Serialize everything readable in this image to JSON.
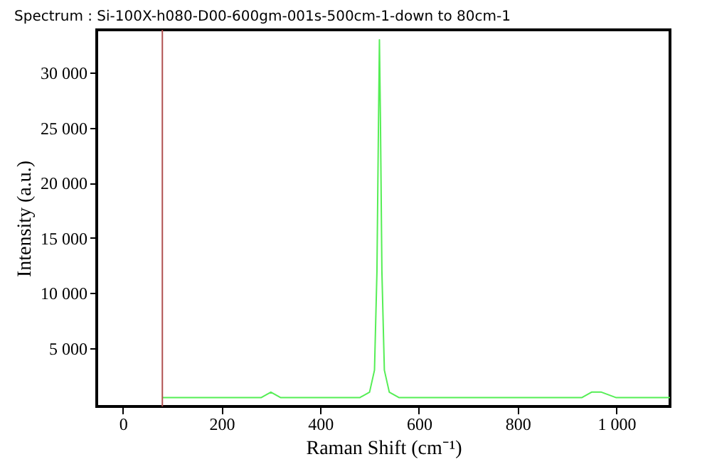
{
  "chart_data": {
    "type": "line",
    "title": "Spectrum : Si-100X-h080-D00-600gm-001s-500cm-1-down to 80cm-1",
    "xlabel": "Raman Shift (cm⁻¹)",
    "ylabel": "Intensity (a.u.)",
    "series": [
      {
        "color": "#55ee55",
        "x": [
          80,
          150,
          200,
          280,
          300,
          320,
          400,
          480,
          500,
          510,
          515,
          518,
          520,
          522,
          525,
          530,
          540,
          560,
          600,
          620,
          640,
          700,
          800,
          900,
          930,
          950,
          970,
          1000,
          1050,
          1109
        ],
        "values": [
          500,
          500,
          500,
          500,
          1000,
          500,
          500,
          500,
          1000,
          3000,
          12000,
          25000,
          33000,
          26000,
          12000,
          3000,
          1000,
          500,
          500,
          500,
          500,
          500,
          500,
          500,
          500,
          1000,
          1000,
          500,
          500,
          500
        ]
      }
    ],
    "xlim": [
      -53,
      1109
    ],
    "ylim": [
      -300,
      33900
    ],
    "xticks": [
      0,
      200,
      400,
      600,
      800,
      {
        "value": 1000,
        "label": "1 000"
      }
    ],
    "yticks": [
      {
        "value": 5000,
        "label": "5 000"
      },
      {
        "value": 10000,
        "label": "10 000"
      },
      {
        "value": 15000,
        "label": "15 000"
      },
      {
        "value": 20000,
        "label": "20 000"
      },
      {
        "value": 25000,
        "label": "25 000"
      },
      {
        "value": 30000,
        "label": "30 000"
      }
    ],
    "ref_lines": [
      {
        "axis": "x",
        "value": 80,
        "color": "#b05050"
      }
    ],
    "grid": false,
    "marker": "none",
    "line_style": "solid"
  }
}
